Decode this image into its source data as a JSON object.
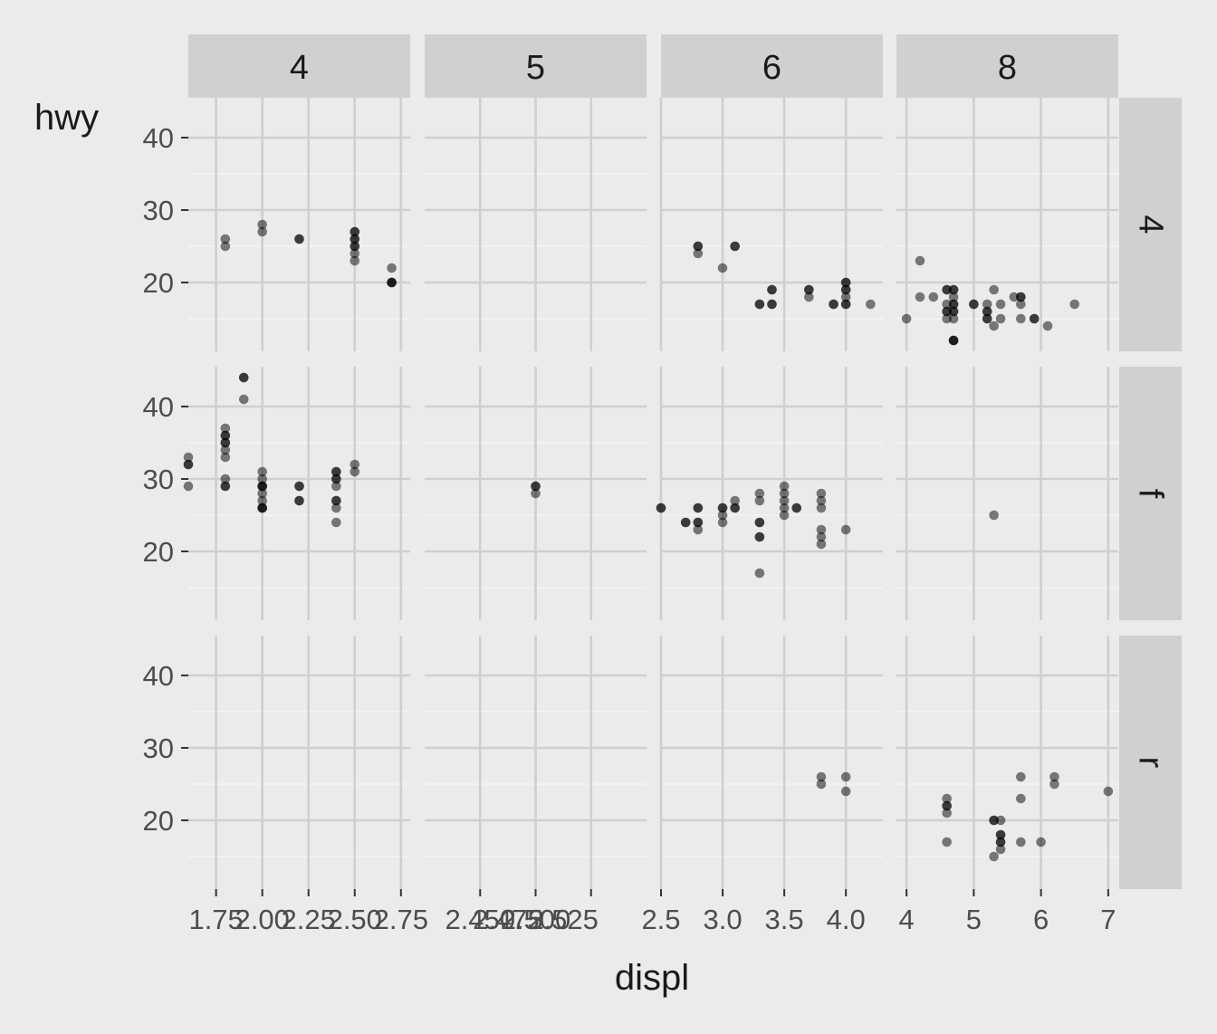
{
  "chart_data": {
    "type": "scatter",
    "title": "",
    "xlabel": "displ",
    "ylabel": "hwy",
    "grid": true,
    "facet_cols": [
      "4",
      "5",
      "6",
      "8"
    ],
    "facet_rows": [
      "4",
      "f",
      "r"
    ],
    "ylim": [
      10.5,
      45.5
    ],
    "yticks": [
      20,
      30,
      40
    ],
    "x_axes": [
      {
        "col": "4",
        "xlim": [
          1.6,
          2.8
        ],
        "ticks": [
          1.75,
          2.0,
          2.25,
          2.5,
          2.75
        ],
        "tick_labels": [
          "1.75",
          "2.00",
          "2.25",
          "2.50",
          "2.75"
        ]
      },
      {
        "col": "5",
        "xlim": [
          2.4,
          2.6
        ],
        "ticks": [
          2.45,
          2.5,
          2.55
        ],
        "tick_labels": [
          "2.450",
          "2.475",
          "2.500",
          "2.525"
        ],
        "label_positions": [
          2.45,
          2.475,
          2.5,
          2.525
        ]
      },
      {
        "col": "6",
        "xlim": [
          2.5,
          4.3
        ],
        "ticks": [
          2.5,
          3.0,
          3.5,
          4.0
        ],
        "tick_labels": [
          "2.5",
          "3.0",
          "3.5",
          "4.0"
        ]
      },
      {
        "col": "8",
        "xlim": [
          3.85,
          7.15
        ],
        "ticks": [
          4,
          5,
          6,
          7
        ],
        "tick_labels": [
          "4",
          "5",
          "6",
          "7"
        ]
      }
    ],
    "panels": [
      {
        "col": "4",
        "row": "4",
        "points": [
          [
            1.8,
            26
          ],
          [
            1.8,
            25
          ],
          [
            2.0,
            28
          ],
          [
            2.0,
            27
          ],
          [
            2.2,
            26
          ],
          [
            2.2,
            26
          ],
          [
            2.5,
            27
          ],
          [
            2.5,
            27
          ],
          [
            2.5,
            26
          ],
          [
            2.5,
            26
          ],
          [
            2.5,
            25
          ],
          [
            2.5,
            25
          ],
          [
            2.5,
            24
          ],
          [
            2.5,
            23
          ],
          [
            2.7,
            22
          ],
          [
            2.7,
            20
          ],
          [
            2.7,
            20
          ],
          [
            2.7,
            20
          ]
        ]
      },
      {
        "col": "5",
        "row": "4",
        "points": []
      },
      {
        "col": "6",
        "row": "4",
        "points": [
          [
            2.8,
            25
          ],
          [
            2.8,
            25
          ],
          [
            2.8,
            24
          ],
          [
            3.1,
            25
          ],
          [
            3.1,
            25
          ],
          [
            3.0,
            22
          ],
          [
            3.3,
            17
          ],
          [
            3.3,
            17
          ],
          [
            3.4,
            19
          ],
          [
            3.4,
            19
          ],
          [
            3.4,
            17
          ],
          [
            3.4,
            17
          ],
          [
            3.7,
            19
          ],
          [
            3.7,
            19
          ],
          [
            3.7,
            18
          ],
          [
            3.9,
            17
          ],
          [
            3.9,
            17
          ],
          [
            4.0,
            20
          ],
          [
            4.0,
            20
          ],
          [
            4.0,
            19
          ],
          [
            4.0,
            19
          ],
          [
            4.0,
            18
          ],
          [
            4.0,
            17
          ],
          [
            4.0,
            17
          ],
          [
            4.2,
            17
          ]
        ]
      },
      {
        "col": "8",
        "row": "4",
        "points": [
          [
            4.0,
            15
          ],
          [
            4.2,
            23
          ],
          [
            4.2,
            18
          ],
          [
            4.4,
            18
          ],
          [
            4.6,
            19
          ],
          [
            4.6,
            19
          ],
          [
            4.6,
            17
          ],
          [
            4.6,
            16
          ],
          [
            4.6,
            16
          ],
          [
            4.6,
            15
          ],
          [
            4.7,
            19
          ],
          [
            4.7,
            19
          ],
          [
            4.7,
            18
          ],
          [
            4.7,
            17
          ],
          [
            4.7,
            17
          ],
          [
            4.7,
            16
          ],
          [
            4.7,
            16
          ],
          [
            4.7,
            15
          ],
          [
            4.7,
            12
          ],
          [
            4.7,
            12
          ],
          [
            4.7,
            12
          ],
          [
            5.0,
            17
          ],
          [
            5.0,
            17
          ],
          [
            5.2,
            17
          ],
          [
            5.2,
            16
          ],
          [
            5.2,
            16
          ],
          [
            5.2,
            15
          ],
          [
            5.2,
            15
          ],
          [
            5.3,
            19
          ],
          [
            5.3,
            14
          ],
          [
            5.4,
            17
          ],
          [
            5.4,
            15
          ],
          [
            5.6,
            18
          ],
          [
            5.7,
            18
          ],
          [
            5.7,
            18
          ],
          [
            5.7,
            17
          ],
          [
            5.7,
            15
          ],
          [
            5.9,
            15
          ],
          [
            5.9,
            15
          ],
          [
            6.1,
            14
          ],
          [
            6.5,
            17
          ]
        ]
      },
      {
        "col": "4",
        "row": "f",
        "points": [
          [
            1.6,
            33
          ],
          [
            1.6,
            32
          ],
          [
            1.6,
            32
          ],
          [
            1.6,
            29
          ],
          [
            1.8,
            37
          ],
          [
            1.8,
            36
          ],
          [
            1.8,
            36
          ],
          [
            1.8,
            35
          ],
          [
            1.8,
            35
          ],
          [
            1.8,
            34
          ],
          [
            1.8,
            33
          ],
          [
            1.8,
            30
          ],
          [
            1.8,
            29
          ],
          [
            1.8,
            29
          ],
          [
            1.9,
            44
          ],
          [
            1.9,
            44
          ],
          [
            1.9,
            41
          ],
          [
            2.0,
            31
          ],
          [
            2.0,
            30
          ],
          [
            2.0,
            29
          ],
          [
            2.0,
            29
          ],
          [
            2.0,
            29
          ],
          [
            2.0,
            28
          ],
          [
            2.0,
            27
          ],
          [
            2.0,
            26
          ],
          [
            2.0,
            26
          ],
          [
            2.0,
            26
          ],
          [
            2.2,
            29
          ],
          [
            2.2,
            29
          ],
          [
            2.2,
            27
          ],
          [
            2.2,
            27
          ],
          [
            2.4,
            31
          ],
          [
            2.4,
            31
          ],
          [
            2.4,
            30
          ],
          [
            2.4,
            30
          ],
          [
            2.4,
            29
          ],
          [
            2.4,
            27
          ],
          [
            2.4,
            27
          ],
          [
            2.4,
            26
          ],
          [
            2.4,
            24
          ],
          [
            2.5,
            32
          ],
          [
            2.5,
            31
          ]
        ]
      },
      {
        "col": "5",
        "row": "f",
        "points": [
          [
            2.5,
            29
          ],
          [
            2.5,
            29
          ],
          [
            2.5,
            28
          ]
        ]
      },
      {
        "col": "6",
        "row": "f",
        "points": [
          [
            2.5,
            26
          ],
          [
            2.5,
            26
          ],
          [
            2.7,
            24
          ],
          [
            2.7,
            24
          ],
          [
            2.8,
            26
          ],
          [
            2.8,
            26
          ],
          [
            2.8,
            24
          ],
          [
            2.8,
            24
          ],
          [
            2.8,
            23
          ],
          [
            3.0,
            26
          ],
          [
            3.0,
            26
          ],
          [
            3.0,
            25
          ],
          [
            3.0,
            24
          ],
          [
            3.1,
            27
          ],
          [
            3.1,
            26
          ],
          [
            3.1,
            26
          ],
          [
            3.3,
            28
          ],
          [
            3.3,
            27
          ],
          [
            3.3,
            24
          ],
          [
            3.3,
            24
          ],
          [
            3.3,
            22
          ],
          [
            3.3,
            22
          ],
          [
            3.3,
            17
          ],
          [
            3.5,
            29
          ],
          [
            3.5,
            28
          ],
          [
            3.5,
            27
          ],
          [
            3.5,
            26
          ],
          [
            3.5,
            25
          ],
          [
            3.6,
            26
          ],
          [
            3.6,
            26
          ],
          [
            3.8,
            28
          ],
          [
            3.8,
            27
          ],
          [
            3.8,
            26
          ],
          [
            3.8,
            23
          ],
          [
            3.8,
            22
          ],
          [
            3.8,
            21
          ],
          [
            4.0,
            23
          ]
        ]
      },
      {
        "col": "8",
        "row": "f",
        "points": [
          [
            5.3,
            25
          ]
        ]
      },
      {
        "col": "4",
        "row": "r",
        "points": []
      },
      {
        "col": "5",
        "row": "r",
        "points": []
      },
      {
        "col": "6",
        "row": "r",
        "points": [
          [
            3.8,
            26
          ],
          [
            3.8,
            25
          ],
          [
            4.0,
            26
          ],
          [
            4.0,
            24
          ]
        ]
      },
      {
        "col": "8",
        "row": "r",
        "points": [
          [
            4.6,
            23
          ],
          [
            4.6,
            22
          ],
          [
            4.6,
            22
          ],
          [
            4.6,
            21
          ],
          [
            4.6,
            17
          ],
          [
            5.3,
            20
          ],
          [
            5.3,
            20
          ],
          [
            5.3,
            15
          ],
          [
            5.4,
            20
          ],
          [
            5.4,
            18
          ],
          [
            5.4,
            18
          ],
          [
            5.4,
            17
          ],
          [
            5.4,
            17
          ],
          [
            5.4,
            16
          ],
          [
            5.7,
            26
          ],
          [
            5.7,
            23
          ],
          [
            5.7,
            17
          ],
          [
            6.0,
            17
          ],
          [
            6.2,
            26
          ],
          [
            6.2,
            25
          ],
          [
            7.0,
            24
          ]
        ]
      }
    ]
  }
}
